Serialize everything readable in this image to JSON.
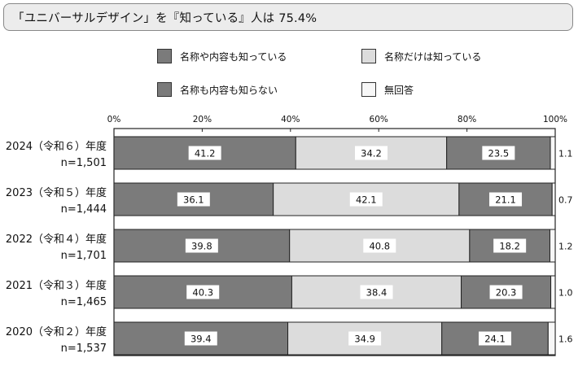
{
  "banner": {
    "text": "「ユニバーサルデザイン」を『知っている』人は 75.4%"
  },
  "colors": {
    "known_content": "#7b7b7b",
    "name_only": "#dcdcdc",
    "unknown": "#7b7b7b",
    "no_answer": "#f7f7f7",
    "border": "#222222",
    "label_box": "#ffffff"
  },
  "chart_data": {
    "type": "bar",
    "orientation": "horizontal",
    "stacked": true,
    "title": "",
    "xlabel": "",
    "ylabel": "",
    "xlim": [
      0,
      100
    ],
    "x_ticks": [
      "0%",
      "20%",
      "40%",
      "60%",
      "80%",
      "100%"
    ],
    "legend_position": "top",
    "grid": false,
    "categories": [
      {
        "year": "2024（令和６）年度",
        "n": "n=1,501"
      },
      {
        "year": "2023（令和５）年度",
        "n": "n=1,444"
      },
      {
        "year": "2022（令和４）年度",
        "n": "n=1,701"
      },
      {
        "year": "2021（令和３）年度",
        "n": "n=1,465"
      },
      {
        "year": "2020（令和２）年度",
        "n": "n=1,537"
      }
    ],
    "series": [
      {
        "name": "名称や内容も知っている",
        "color_key": "known_content",
        "values": [
          41.2,
          36.1,
          39.8,
          40.3,
          39.4
        ],
        "labels": [
          "41.2",
          "36.1",
          "39.8",
          "40.3",
          "39.4"
        ]
      },
      {
        "name": "名称だけは知っている",
        "color_key": "name_only",
        "values": [
          34.2,
          42.1,
          40.8,
          38.4,
          34.9
        ],
        "labels": [
          "34.2",
          "42.1",
          "40.8",
          "38.4",
          "34.9"
        ]
      },
      {
        "name": "名称も内容も知らない",
        "color_key": "unknown",
        "values": [
          23.5,
          21.1,
          18.2,
          20.3,
          24.1
        ],
        "labels": [
          "23.5",
          "21.1",
          "18.2",
          "20.3",
          "24.1"
        ]
      },
      {
        "name": "無回答",
        "color_key": "no_answer",
        "values": [
          1.1,
          0.7,
          1.2,
          1.0,
          1.6
        ],
        "labels": [
          "1.1",
          "0.7",
          "1.2",
          "1.0",
          "1.6"
        ]
      }
    ]
  }
}
